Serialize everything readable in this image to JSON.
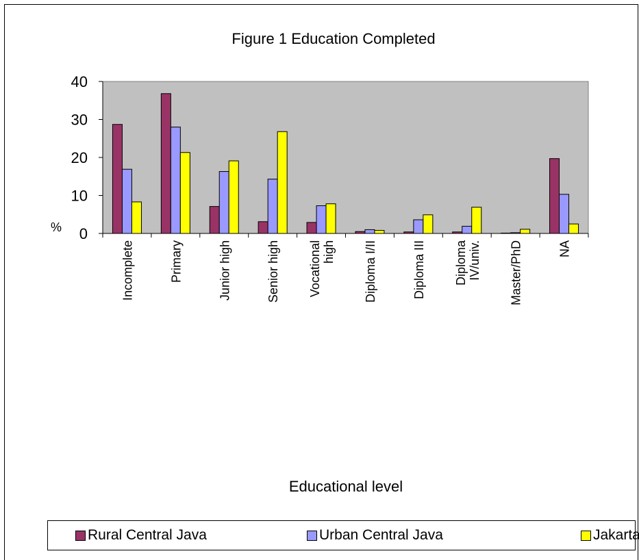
{
  "chart_data": {
    "type": "bar",
    "title": "Figure 1  Education Completed",
    "xlabel": "Educational level",
    "ylabel": "%",
    "ylim": [
      0,
      40
    ],
    "yticks": [
      "0",
      "10",
      "20",
      "30",
      "40"
    ],
    "grid": false,
    "plot_background": "#c0c0c0",
    "legend_position": "bottom",
    "categories": [
      [
        "Incomplete"
      ],
      [
        "Primary"
      ],
      [
        "Junior high"
      ],
      [
        "Senior high"
      ],
      [
        "Vocational",
        "high"
      ],
      [
        "Diploma I/II"
      ],
      [
        "Diploma III"
      ],
      [
        "Diploma",
        "IV/univ."
      ],
      [
        "Master/PhD"
      ],
      [
        "NA"
      ]
    ],
    "series": [
      {
        "name": "Rural Central Java",
        "color": "#993366",
        "values": [
          28.7,
          36.8,
          7.1,
          3.1,
          2.9,
          0.5,
          0.4,
          0.4,
          0.1,
          19.7
        ]
      },
      {
        "name": "Urban Central Java",
        "color": "#9999ff",
        "values": [
          16.9,
          28.0,
          16.3,
          14.3,
          7.3,
          1.0,
          3.6,
          1.9,
          0.2,
          10.3
        ]
      },
      {
        "name": "Jakarta",
        "color": "#ffff00",
        "values": [
          8.3,
          21.3,
          19.1,
          26.8,
          7.8,
          0.8,
          4.9,
          6.9,
          1.1,
          2.5
        ]
      }
    ]
  }
}
